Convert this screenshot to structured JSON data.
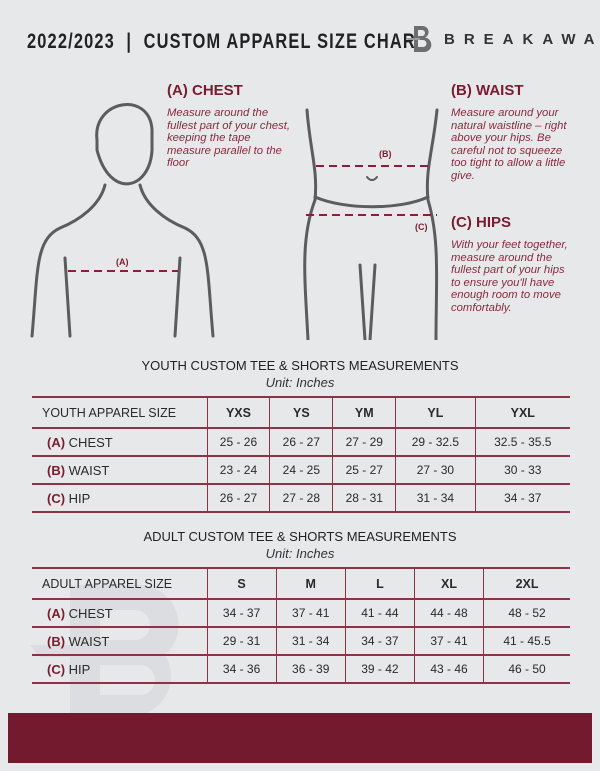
{
  "header": {
    "title": "2022/2023  |  CUSTOM APPAREL SIZE CHART",
    "brand": "BREAKAWAY",
    "logo_letter": "B"
  },
  "guide": {
    "chest": {
      "title": "(A) CHEST",
      "text": "Measure around the fullest part of your chest, keeping the tape measure parallel to the floor",
      "marker": "(A)"
    },
    "waist": {
      "title": "(B) WAIST",
      "text": "Measure around your natural waistline – right above your hips. Be careful not to squeeze too tight to allow a little give.",
      "marker": "(B)"
    },
    "hips": {
      "title": "(C) HIPS",
      "text": "With your feet together, measure around the fullest part of your hips to ensure you'll have enough room to move comfortably.",
      "marker": "(C)"
    }
  },
  "colors": {
    "accent": "#7a1c30",
    "footer": "#731a2e",
    "background": "#e7e8ea"
  },
  "youth": {
    "title": "YOUTH CUSTOM TEE & SHORTS MEASUREMENTS",
    "unit": "Unit: Inches",
    "header": "YOUTH APPAREL SIZE",
    "sizes": [
      "YXS",
      "YS",
      "YM",
      "YL",
      "YXL"
    ],
    "rows": [
      {
        "prefix": "(A)",
        "label": "CHEST",
        "values": [
          "25 - 26",
          "26 - 27",
          "27 - 29",
          "29 - 32.5",
          "32.5 - 35.5"
        ]
      },
      {
        "prefix": "(B)",
        "label": "WAIST",
        "values": [
          "23 - 24",
          "24 - 25",
          "25 - 27",
          "27 - 30",
          "30 - 33"
        ]
      },
      {
        "prefix": "(C)",
        "label": "HIP",
        "values": [
          "26 - 27",
          "27 - 28",
          "28 - 31",
          "31 - 34",
          "34 - 37"
        ]
      }
    ]
  },
  "adult": {
    "title": "ADULT CUSTOM TEE & SHORTS MEASUREMENTS",
    "unit": "Unit: Inches",
    "header": "ADULT APPAREL SIZE",
    "sizes": [
      "S",
      "M",
      "L",
      "XL",
      "2XL"
    ],
    "rows": [
      {
        "prefix": "(A)",
        "label": "CHEST",
        "values": [
          "34 - 37",
          "37 - 41",
          "41 - 44",
          "44 - 48",
          "48 - 52"
        ]
      },
      {
        "prefix": "(B)",
        "label": "WAIST",
        "values": [
          "29 - 31",
          "31 - 34",
          "34 - 37",
          "37 - 41",
          "41 - 45.5"
        ]
      },
      {
        "prefix": "(C)",
        "label": "HIP",
        "values": [
          "34 - 36",
          "36 - 39",
          "39 - 42",
          "43 - 46",
          "46 - 50"
        ]
      }
    ]
  }
}
